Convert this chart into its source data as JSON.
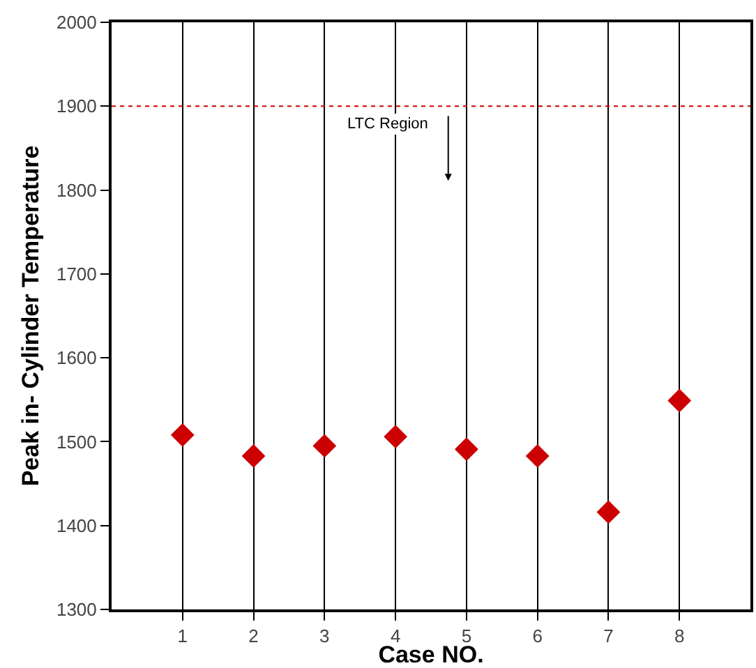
{
  "chart_data": {
    "type": "scatter",
    "xlabel": "Case NO.",
    "ylabel": "Peak in- Cylinder Temperature",
    "x": [
      1,
      2,
      3,
      4,
      5,
      6,
      7,
      8
    ],
    "series": [
      {
        "color": "#cc0000",
        "values": [
          1508,
          1483,
          1495,
          1506,
          1491,
          1483,
          1416,
          1549
        ]
      }
    ],
    "xlim": [
      0,
      9
    ],
    "xticks": [
      1,
      2,
      3,
      4,
      5,
      6,
      7,
      8
    ],
    "ylim": [
      1300,
      2000
    ],
    "yticks": [
      1300,
      1400,
      1500,
      1600,
      1700,
      1800,
      1900,
      2000
    ],
    "grid": "x",
    "marker": "diamond",
    "ref_lines": [
      {
        "axis": "y",
        "value": 1900,
        "color": "#cc0000",
        "line_style": "dotted"
      }
    ],
    "annotations": [
      "LTC Region"
    ]
  }
}
